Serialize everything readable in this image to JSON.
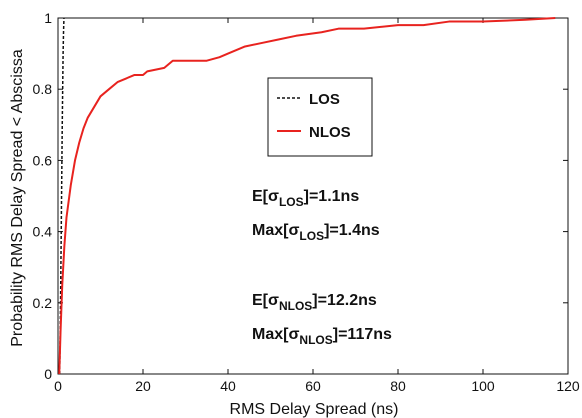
{
  "chart_data": {
    "type": "line",
    "title": "",
    "xlabel": "RMS Delay Spread (ns)",
    "ylabel": "Probability RMS Delay Spread < Abscissa",
    "xlim": [
      0,
      120
    ],
    "ylim": [
      0,
      1
    ],
    "xticks": [
      0,
      20,
      40,
      60,
      80,
      100,
      120
    ],
    "yticks": [
      0,
      0.2,
      0.4,
      0.6,
      0.8,
      1
    ],
    "xtick_labels": [
      "0",
      "20",
      "40",
      "60",
      "80",
      "100",
      "120"
    ],
    "ytick_labels": [
      "0",
      "0.2",
      "0.4",
      "0.6",
      "0.8",
      "1"
    ],
    "grid": false,
    "legend_position": "upper-middle",
    "series": [
      {
        "name": "LOS",
        "color": "#111111",
        "style": "dashed",
        "points": [
          [
            0.4,
            0
          ],
          [
            0.6,
            0.2
          ],
          [
            0.8,
            0.45
          ],
          [
            1.0,
            0.7
          ],
          [
            1.2,
            0.9
          ],
          [
            1.3,
            0.96
          ],
          [
            1.4,
            1.0
          ]
        ]
      },
      {
        "name": "NLOS",
        "color": "#e8231f",
        "style": "solid",
        "points": [
          [
            0.3,
            0
          ],
          [
            0.6,
            0.12
          ],
          [
            1.0,
            0.25
          ],
          [
            1.5,
            0.36
          ],
          [
            2.0,
            0.44
          ],
          [
            3.0,
            0.53
          ],
          [
            4.0,
            0.6
          ],
          [
            5.0,
            0.65
          ],
          [
            6.0,
            0.69
          ],
          [
            7.0,
            0.72
          ],
          [
            8.0,
            0.74
          ],
          [
            9.0,
            0.76
          ],
          [
            10.0,
            0.78
          ],
          [
            12.0,
            0.8
          ],
          [
            14.0,
            0.82
          ],
          [
            16.0,
            0.83
          ],
          [
            18.0,
            0.84
          ],
          [
            20.0,
            0.84
          ],
          [
            21.0,
            0.85
          ],
          [
            25.0,
            0.86
          ],
          [
            27.0,
            0.88
          ],
          [
            35.0,
            0.88
          ],
          [
            38.0,
            0.89
          ],
          [
            40.0,
            0.9
          ],
          [
            44.0,
            0.92
          ],
          [
            48.0,
            0.93
          ],
          [
            52.0,
            0.94
          ],
          [
            56.0,
            0.95
          ],
          [
            62.0,
            0.96
          ],
          [
            66.0,
            0.97
          ],
          [
            72.0,
            0.97
          ],
          [
            80.0,
            0.98
          ],
          [
            86.0,
            0.98
          ],
          [
            92.0,
            0.99
          ],
          [
            100.0,
            0.99
          ],
          [
            110.0,
            0.995
          ],
          [
            117.0,
            1.0
          ]
        ]
      }
    ],
    "legend": {
      "items": [
        "LOS",
        "NLOS"
      ]
    },
    "annotations": [
      {
        "prefix": "E[",
        "symbol": "σ",
        "sub": "LOS",
        "suffix": "]=1.1ns"
      },
      {
        "prefix": "Max[",
        "symbol": "σ",
        "sub": "LOS",
        "suffix": "]=1.4ns"
      },
      {
        "prefix": "E[",
        "symbol": "σ",
        "sub": "NLOS",
        "suffix": "]=12.2ns"
      },
      {
        "prefix": "Max[",
        "symbol": "σ",
        "sub": "NLOS",
        "suffix": "]=117ns"
      }
    ]
  }
}
